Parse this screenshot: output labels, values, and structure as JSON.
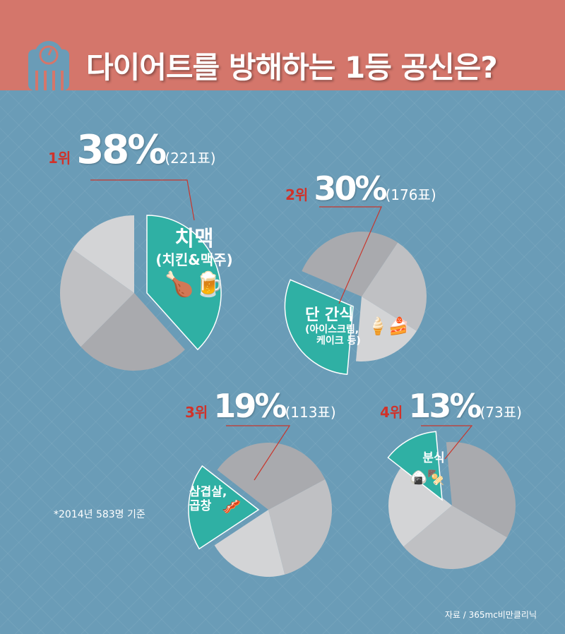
{
  "title": "다이어트를 방해하는 1등 공신은?",
  "colors": {
    "header": "#d4766b",
    "background": "#6a9cb7",
    "highlight": "#2fb0a4",
    "rank": "#d0322a"
  },
  "chart_data": [
    {
      "type": "pie",
      "rank": "1위",
      "percent_label": "38%",
      "votes_label": "(221표)",
      "value": 38,
      "votes": 221,
      "category": "치맥",
      "sub": "(치킨&맥주)"
    },
    {
      "type": "pie",
      "rank": "2위",
      "percent_label": "30%",
      "votes_label": "(176표)",
      "value": 30,
      "votes": 176,
      "category": "단 간식",
      "sub": "(아이스크림,",
      "sub2": "케이크 등)"
    },
    {
      "type": "pie",
      "rank": "3위",
      "percent_label": "19%",
      "votes_label": "(113표)",
      "value": 19,
      "votes": 113,
      "category": "삼겹살,",
      "sub": "곱창"
    },
    {
      "type": "pie",
      "rank": "4위",
      "percent_label": "13%",
      "votes_label": "(73표)",
      "value": 13,
      "votes": 73,
      "category": "분식"
    }
  ],
  "note": "*2014년 583명 기준",
  "source": "자료 / 365mc비만클리닉"
}
